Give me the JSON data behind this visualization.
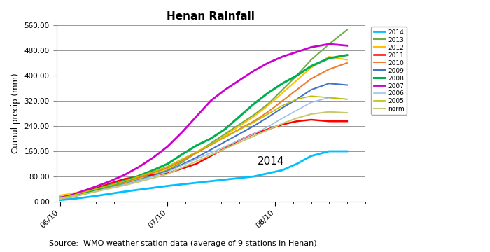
{
  "title": "Henan Rainfall",
  "ylabel": "Cumul precip (mm)",
  "source_text": "Source:  WMO weather station data (average of 9 stations in Henan).",
  "annotation_2014": "2014",
  "ylim": [
    0,
    560
  ],
  "yticks": [
    0,
    80,
    160,
    240,
    320,
    400,
    480,
    560
  ],
  "xtick_positions": [
    0,
    30,
    60
  ],
  "xtick_labels": [
    "06/10",
    "07/10",
    "08/10"
  ],
  "xlim": [
    -1,
    85
  ],
  "series": {
    "2014": {
      "color": "#00BFFF",
      "lw": 2.0,
      "x": [
        0,
        3,
        6,
        10,
        14,
        18,
        22,
        26,
        30,
        34,
        38,
        42,
        46,
        50,
        54,
        58,
        62,
        66,
        70,
        75,
        80
      ],
      "y": [
        5,
        8,
        12,
        18,
        25,
        32,
        38,
        44,
        50,
        55,
        60,
        65,
        70,
        75,
        80,
        90,
        100,
        120,
        145,
        160,
        160
      ]
    },
    "2013": {
      "color": "#70AD47",
      "lw": 1.5,
      "x": [
        0,
        3,
        6,
        10,
        14,
        18,
        22,
        26,
        30,
        34,
        38,
        42,
        46,
        50,
        54,
        58,
        62,
        66,
        70,
        75,
        80
      ],
      "y": [
        15,
        20,
        28,
        38,
        48,
        58,
        70,
        85,
        100,
        125,
        155,
        185,
        215,
        245,
        275,
        310,
        355,
        400,
        450,
        500,
        545
      ]
    },
    "2012": {
      "color": "#FFC000",
      "lw": 1.5,
      "x": [
        0,
        3,
        6,
        10,
        14,
        18,
        22,
        26,
        30,
        34,
        38,
        42,
        46,
        50,
        54,
        58,
        62,
        66,
        70,
        75,
        80
      ],
      "y": [
        20,
        25,
        32,
        42,
        52,
        63,
        75,
        90,
        105,
        130,
        155,
        180,
        210,
        240,
        270,
        305,
        345,
        385,
        425,
        460,
        450
      ]
    },
    "2011": {
      "color": "#FF0000",
      "lw": 1.8,
      "x": [
        0,
        3,
        6,
        10,
        14,
        18,
        22,
        26,
        30,
        34,
        38,
        42,
        46,
        50,
        54,
        58,
        62,
        66,
        70,
        75,
        80
      ],
      "y": [
        10,
        18,
        28,
        42,
        58,
        72,
        80,
        85,
        90,
        105,
        120,
        145,
        170,
        195,
        215,
        230,
        245,
        255,
        260,
        255,
        255
      ]
    },
    "2010": {
      "color": "#ED7D31",
      "lw": 1.5,
      "x": [
        0,
        3,
        6,
        10,
        14,
        18,
        22,
        26,
        30,
        34,
        38,
        42,
        46,
        50,
        54,
        58,
        62,
        66,
        70,
        75,
        80
      ],
      "y": [
        12,
        18,
        26,
        38,
        50,
        62,
        76,
        92,
        108,
        130,
        155,
        180,
        205,
        230,
        255,
        285,
        320,
        355,
        390,
        420,
        440
      ]
    },
    "2009": {
      "color": "#4472C4",
      "lw": 1.5,
      "x": [
        0,
        3,
        6,
        10,
        14,
        18,
        22,
        26,
        30,
        34,
        38,
        42,
        46,
        50,
        54,
        58,
        62,
        66,
        70,
        75,
        80
      ],
      "y": [
        8,
        14,
        22,
        33,
        44,
        55,
        68,
        82,
        97,
        118,
        140,
        165,
        190,
        215,
        240,
        268,
        298,
        325,
        355,
        375,
        370
      ]
    },
    "2008": {
      "color": "#00B050",
      "lw": 2.2,
      "x": [
        0,
        3,
        6,
        10,
        14,
        18,
        22,
        26,
        30,
        34,
        38,
        42,
        46,
        50,
        54,
        58,
        62,
        66,
        70,
        75,
        80
      ],
      "y": [
        10,
        16,
        25,
        38,
        52,
        66,
        82,
        100,
        120,
        150,
        178,
        200,
        230,
        270,
        310,
        345,
        375,
        400,
        430,
        455,
        465
      ]
    },
    "2007": {
      "color": "#CC00CC",
      "lw": 2.0,
      "x": [
        0,
        3,
        6,
        10,
        14,
        18,
        22,
        26,
        30,
        34,
        38,
        42,
        46,
        50,
        54,
        58,
        62,
        66,
        70,
        75,
        80
      ],
      "y": [
        12,
        20,
        32,
        48,
        65,
        85,
        110,
        140,
        175,
        220,
        270,
        320,
        355,
        385,
        415,
        440,
        460,
        475,
        490,
        500,
        495
      ]
    },
    "2006": {
      "color": "#9DC3E6",
      "lw": 1.2,
      "x": [
        0,
        3,
        6,
        10,
        14,
        18,
        22,
        26,
        30,
        34,
        38,
        42,
        46,
        50,
        54,
        58,
        62,
        66,
        70,
        75,
        80
      ],
      "y": [
        8,
        14,
        22,
        33,
        44,
        55,
        68,
        80,
        95,
        115,
        135,
        155,
        175,
        195,
        215,
        238,
        265,
        290,
        315,
        330,
        325
      ]
    },
    "2005": {
      "color": "#BFBF00",
      "lw": 1.2,
      "x": [
        0,
        3,
        6,
        10,
        14,
        18,
        22,
        26,
        30,
        34,
        38,
        42,
        46,
        50,
        54,
        58,
        62,
        66,
        70,
        75,
        80
      ],
      "y": [
        12,
        18,
        28,
        40,
        52,
        65,
        80,
        95,
        112,
        135,
        158,
        182,
        205,
        228,
        252,
        278,
        305,
        325,
        335,
        330,
        325
      ]
    },
    "norm": {
      "color": "#C8C870",
      "lw": 1.5,
      "x": [
        0,
        3,
        6,
        10,
        14,
        18,
        22,
        26,
        30,
        34,
        38,
        42,
        46,
        50,
        54,
        58,
        62,
        66,
        70,
        75,
        80
      ],
      "y": [
        10,
        15,
        22,
        32,
        42,
        52,
        63,
        75,
        88,
        108,
        128,
        148,
        168,
        188,
        208,
        228,
        248,
        265,
        278,
        285,
        282
      ]
    }
  },
  "legend_order": [
    "2014",
    "2013",
    "2012",
    "2011",
    "2010",
    "2009",
    "2008",
    "2007",
    "2006",
    "2005",
    "norm"
  ]
}
